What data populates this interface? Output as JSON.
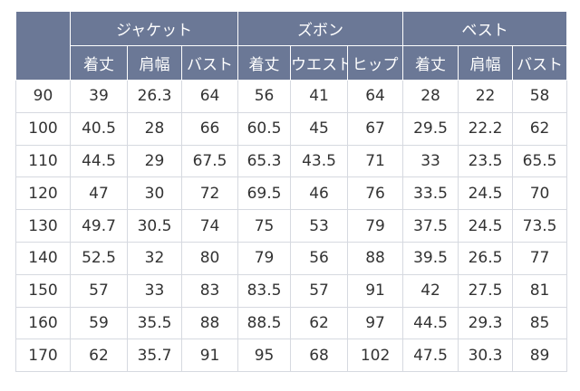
{
  "table": {
    "groups": [
      "ジャケット",
      "ズボン",
      "ベスト"
    ],
    "subheaders": [
      "着丈",
      "肩幅",
      "バスト",
      "着丈",
      "ウエスト",
      "ヒップ",
      "着丈",
      "肩幅",
      "バスト"
    ],
    "rows": [
      [
        "90",
        "39",
        "26.3",
        "64",
        "56",
        "41",
        "64",
        "28",
        "22",
        "58"
      ],
      [
        "100",
        "40.5",
        "28",
        "66",
        "60.5",
        "45",
        "67",
        "29.5",
        "22.2",
        "62"
      ],
      [
        "110",
        "44.5",
        "29",
        "67.5",
        "65.3",
        "43.5",
        "71",
        "33",
        "23.5",
        "65.5"
      ],
      [
        "120",
        "47",
        "30",
        "72",
        "69.5",
        "46",
        "76",
        "33.5",
        "24.5",
        "70"
      ],
      [
        "130",
        "49.7",
        "30.5",
        "74",
        "75",
        "53",
        "79",
        "37.5",
        "24.5",
        "73.5"
      ],
      [
        "140",
        "52.5",
        "32",
        "80",
        "79",
        "56",
        "88",
        "39.5",
        "26.5",
        "77"
      ],
      [
        "150",
        "57",
        "33",
        "83",
        "83.5",
        "57",
        "91",
        "42",
        "27.5",
        "81"
      ],
      [
        "160",
        "59",
        "35.5",
        "88",
        "88.5",
        "62",
        "97",
        "44.5",
        "29.3",
        "85"
      ],
      [
        "170",
        "62",
        "35.7",
        "91",
        "95",
        "68",
        "102",
        "47.5",
        "30.3",
        "89"
      ]
    ]
  }
}
